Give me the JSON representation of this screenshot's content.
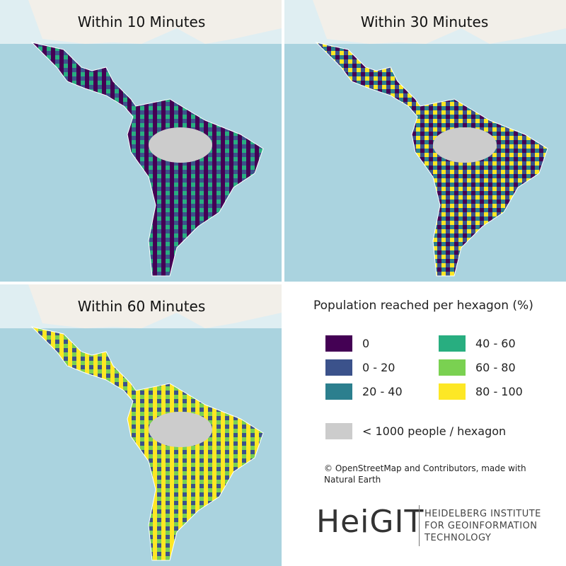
{
  "panels": [
    {
      "title": "Within 10 Minutes"
    },
    {
      "title": "Within 30 Minutes"
    },
    {
      "title": "Within 60 Minutes"
    }
  ],
  "legend": {
    "title": "Population reached per hexagon (%)",
    "items": [
      {
        "label": "0",
        "color": "#440154"
      },
      {
        "label": "0 - 20",
        "color": "#3b528b"
      },
      {
        "label": "20 - 40",
        "color": "#2c7f8e"
      },
      {
        "label": "40 - 60",
        "color": "#28ae80"
      },
      {
        "label": "60 - 80",
        "color": "#7ad151"
      },
      {
        "label": "80 - 100",
        "color": "#fde725"
      }
    ],
    "no_data": {
      "label": "< 1000 people / hexagon",
      "color": "#cccccc"
    }
  },
  "attribution": "© OpenStreetMap and Contributors, made with Natural Earth",
  "logo": {
    "name": "HeiGIT",
    "lines": [
      "HEIDELBERG INSTITUTE",
      "FOR GEOINFORMATION",
      "TECHNOLOGY"
    ]
  }
}
